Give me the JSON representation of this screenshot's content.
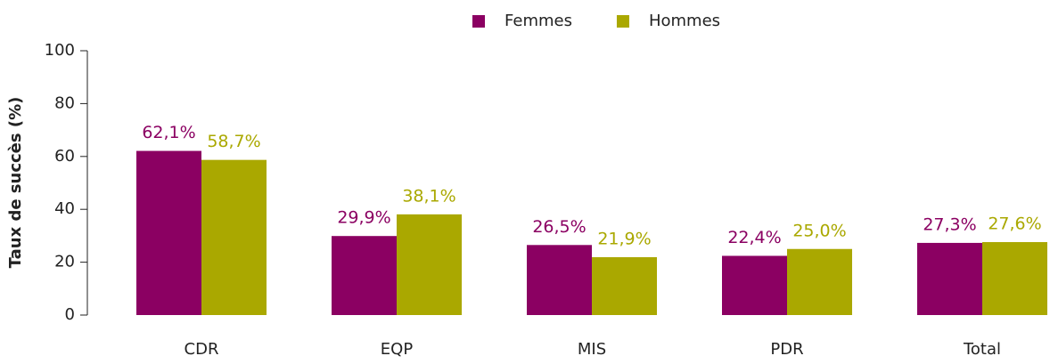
{
  "chart_data": {
    "type": "bar",
    "y_label": "Taux de succès (%)",
    "categories": [
      "CDR",
      "EQP",
      "MIS",
      "PDR",
      "Total"
    ],
    "series": [
      {
        "name": "Femmes",
        "color": "#8b0062",
        "values": [
          62.1,
          29.9,
          26.5,
          22.4,
          27.3
        ],
        "value_labels": [
          "62,1%",
          "29,9%",
          "26,5%",
          "22,4%",
          "27,3%"
        ]
      },
      {
        "name": "Hommes",
        "color": "#aaa800",
        "values": [
          58.7,
          38.1,
          21.9,
          25.0,
          27.6
        ],
        "value_labels": [
          "58,7%",
          "38,1%",
          "21,9%",
          "25,0%",
          "27,6%"
        ]
      }
    ],
    "ylim": [
      0,
      100
    ],
    "yticks": [
      0,
      20,
      40,
      60,
      80,
      100
    ],
    "legend": "top"
  }
}
